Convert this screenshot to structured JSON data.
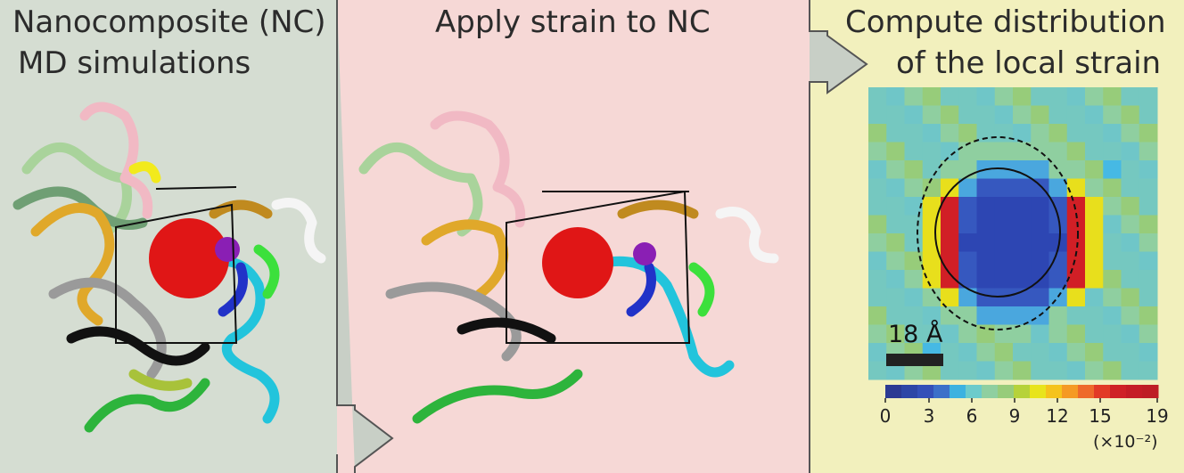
{
  "panels": {
    "md": {
      "title_line1": "Nanocomposite (NC)",
      "title_line2": "MD simulations"
    },
    "strain": {
      "title": "Apply strain to NC"
    },
    "local": {
      "title_line1": "Compute distribution",
      "title_line2": "of the local strain"
    }
  },
  "scale_bar": {
    "label": "18 Å"
  },
  "colorbar": {
    "ticks": [
      "0",
      "3",
      "6",
      "9",
      "12",
      "15",
      "19"
    ],
    "unit": "(×10⁻²)",
    "colors": [
      "#2b3a93",
      "#2d46a6",
      "#3450b8",
      "#3c70c9",
      "#3db2e0",
      "#6ccbcb",
      "#8fcfa0",
      "#97cc7a",
      "#b6d23a",
      "#e8e41c",
      "#f5c31c",
      "#f59a23",
      "#ee6a2a",
      "#e23a26",
      "#cf2127",
      "#c51d26",
      "#be1e25"
    ]
  },
  "heatmap": {
    "rows": 16,
    "cols": 16,
    "legend_colors": {
      "blue": "#2d46b3",
      "red": "#d11f26",
      "yellow": "#e8df1c"
    }
  },
  "colors": {
    "arrow_fill": "#c8cfc6",
    "border": "#555555"
  }
}
